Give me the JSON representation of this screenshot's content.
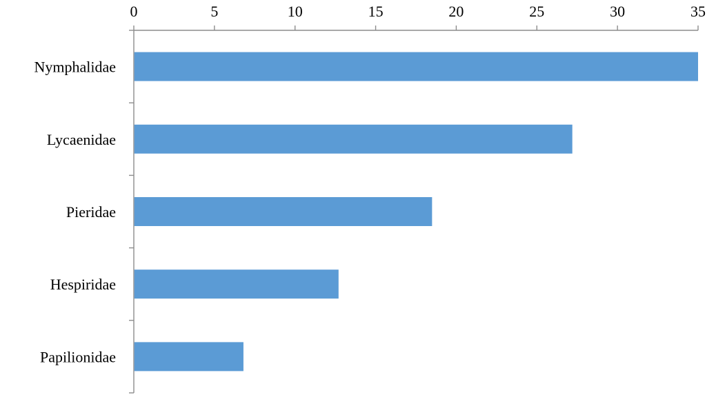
{
  "chart_data": {
    "type": "bar",
    "orientation": "horizontal",
    "categories": [
      "Nymphalidae",
      "Lycaenidae",
      "Pieridae",
      "Hespiridae",
      "Papilionidae"
    ],
    "values": [
      35,
      27.2,
      18.5,
      12.7,
      6.8
    ],
    "xlim": [
      0,
      35
    ],
    "xticks": [
      0,
      5,
      10,
      15,
      20,
      25,
      30,
      35
    ],
    "x_axis_position": "top",
    "grid": false,
    "legend": "none",
    "title": "",
    "xlabel": "",
    "ylabel": "",
    "colors": {
      "bar": "#5b9bd5",
      "axis": "#8c8c8c",
      "text": "#000000"
    }
  }
}
